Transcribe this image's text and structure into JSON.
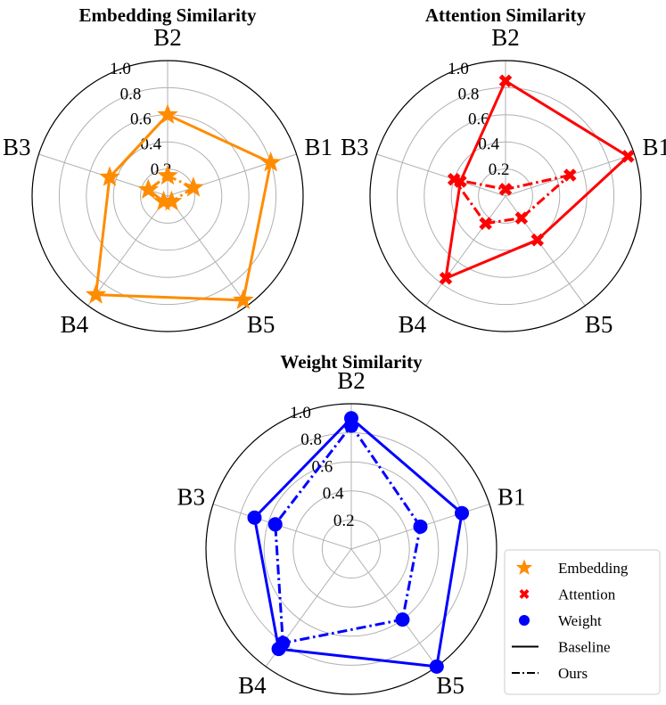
{
  "chart_data": [
    {
      "type": "radar",
      "title": "Embedding Similarity",
      "categories": [
        "B1",
        "B2",
        "B3",
        "B4",
        "B5"
      ],
      "rlim": [
        0,
        1.0
      ],
      "rticks": [
        "0.2",
        "0.4",
        "0.6",
        "0.8",
        "1.0"
      ],
      "color": "#ff8c00",
      "marker": "star",
      "series": [
        {
          "name": "Baseline",
          "linestyle": "solid",
          "values": [
            0.8,
            0.6,
            0.45,
            0.9,
            0.95
          ]
        },
        {
          "name": "Ours",
          "linestyle": "dashdot",
          "values": [
            0.2,
            0.15,
            0.15,
            0.05,
            0.05
          ]
        }
      ]
    },
    {
      "type": "radar",
      "title": "Attention Similarity",
      "categories": [
        "B1",
        "B2",
        "B3",
        "B4",
        "B5"
      ],
      "rlim": [
        0,
        1.0
      ],
      "rticks": [
        "0.2",
        "0.4",
        "0.6",
        "0.8",
        "1.0"
      ],
      "color": "#ff0000",
      "marker": "x",
      "series": [
        {
          "name": "Baseline",
          "linestyle": "solid",
          "values": [
            0.95,
            0.85,
            0.35,
            0.75,
            0.4
          ]
        },
        {
          "name": "Ours",
          "linestyle": "dashdot",
          "values": [
            0.5,
            0.05,
            0.4,
            0.25,
            0.2
          ]
        }
      ]
    },
    {
      "type": "radar",
      "title": "Weight Similarity",
      "categories": [
        "B1",
        "B2",
        "B3",
        "B4",
        "B5"
      ],
      "rlim": [
        0,
        1.0
      ],
      "rticks": [
        "0.2",
        "0.4",
        "0.6",
        "0.8",
        "1.0"
      ],
      "color": "#0000ff",
      "marker": "circle",
      "series": [
        {
          "name": "Baseline",
          "linestyle": "solid",
          "values": [
            0.8,
            0.9,
            0.7,
            0.85,
            1.0
          ]
        },
        {
          "name": "Ours",
          "linestyle": "dashdot",
          "values": [
            0.5,
            0.85,
            0.55,
            0.8,
            0.6
          ]
        }
      ]
    }
  ],
  "legend": {
    "entries": [
      {
        "label": "Embedding",
        "kind": "marker",
        "marker": "star",
        "color": "#ff8c00"
      },
      {
        "label": "Attention",
        "kind": "marker",
        "marker": "x",
        "color": "#ff0000"
      },
      {
        "label": "Weight",
        "kind": "marker",
        "marker": "circle",
        "color": "#0000ff"
      },
      {
        "label": "Baseline",
        "kind": "line",
        "linestyle": "solid",
        "color": "#000000"
      },
      {
        "label": "Ours",
        "kind": "line",
        "linestyle": "dashdot",
        "color": "#000000"
      }
    ]
  }
}
